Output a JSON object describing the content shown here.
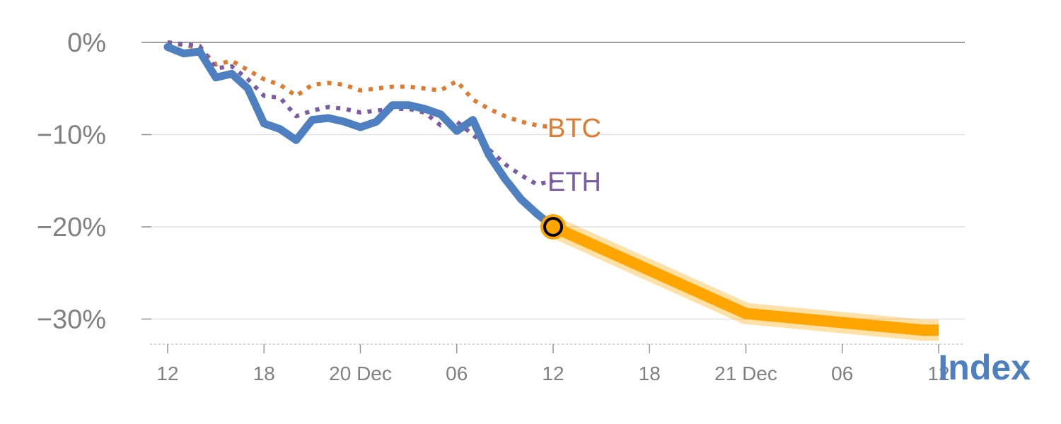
{
  "chart_data": {
    "type": "line",
    "title": "",
    "xlabel": "",
    "ylabel": "",
    "ylim": [
      -32.5,
      0
    ],
    "xlim": [
      0,
      48
    ],
    "x_unit": "hours since first tick (12:00)",
    "y_ticks": [
      0,
      -10,
      -20,
      -30
    ],
    "y_tick_labels": [
      "0%",
      "−10%",
      "−20%",
      "−30%"
    ],
    "x_ticks": [
      0,
      6,
      12,
      18,
      24,
      30,
      36,
      42,
      48
    ],
    "x_tick_labels": [
      "12",
      "18",
      "20 Dec",
      "06",
      "12",
      "18",
      "21 Dec",
      "06",
      "12"
    ],
    "grid": true,
    "series": [
      {
        "name": "BTC",
        "label": "BTC",
        "style": "dotted",
        "color": "#E07A2F",
        "x": [
          0,
          1,
          2,
          3,
          4,
          5,
          6,
          7,
          8,
          9,
          10,
          11,
          12,
          13,
          14,
          15,
          16,
          17,
          18,
          19,
          20,
          21,
          22,
          23,
          24
        ],
        "y": [
          0,
          -0.3,
          -0.6,
          -2.4,
          -2.0,
          -3.0,
          -4.0,
          -4.6,
          -5.8,
          -4.6,
          -4.4,
          -4.6,
          -5.2,
          -5.0,
          -4.8,
          -4.8,
          -5.0,
          -5.2,
          -4.2,
          -6.2,
          -7.2,
          -8.0,
          -8.6,
          -9.0,
          -9.2
        ]
      },
      {
        "name": "ETH",
        "label": "ETH",
        "style": "dotted",
        "color": "#7B5AA6",
        "x": [
          0,
          1,
          2,
          3,
          4,
          5,
          6,
          7,
          8,
          9,
          10,
          11,
          12,
          13,
          14,
          15,
          16,
          17,
          18,
          19,
          20,
          21,
          22,
          23,
          24
        ],
        "y": [
          0,
          -0.2,
          -0.4,
          -2.8,
          -2.6,
          -4.0,
          -5.8,
          -6.0,
          -8.0,
          -7.4,
          -7.0,
          -7.2,
          -7.6,
          -7.4,
          -7.2,
          -7.2,
          -7.6,
          -9.0,
          -8.6,
          -10.0,
          -11.6,
          -13.2,
          -14.4,
          -15.4,
          -15.0
        ]
      },
      {
        "name": "Index",
        "label": "Index",
        "style": "solid",
        "color": "#4E7FC1",
        "x": [
          0,
          1,
          2,
          3,
          4,
          5,
          6,
          7,
          8,
          9,
          10,
          11,
          12,
          13,
          14,
          15,
          16,
          17,
          18,
          19,
          20,
          21,
          22,
          23,
          24
        ],
        "y": [
          -0.5,
          -1.2,
          -1.0,
          -3.8,
          -3.4,
          -5.0,
          -8.8,
          -9.4,
          -10.6,
          -8.4,
          -8.2,
          -8.6,
          -9.2,
          -8.6,
          -6.8,
          -6.8,
          -7.2,
          -7.8,
          -9.6,
          -8.4,
          -12.2,
          -14.8,
          -17.0,
          -18.6,
          -20.0
        ]
      },
      {
        "name": "Index projection",
        "label": "",
        "style": "highlight",
        "color": "#FFA500",
        "x": [
          24,
          36,
          47,
          48
        ],
        "y": [
          -20.0,
          -29.4,
          -31.2,
          -31.2
        ]
      }
    ],
    "marker": {
      "x": 24,
      "y": -20.0,
      "fill": "#FFA500",
      "stroke": "#000000"
    }
  }
}
